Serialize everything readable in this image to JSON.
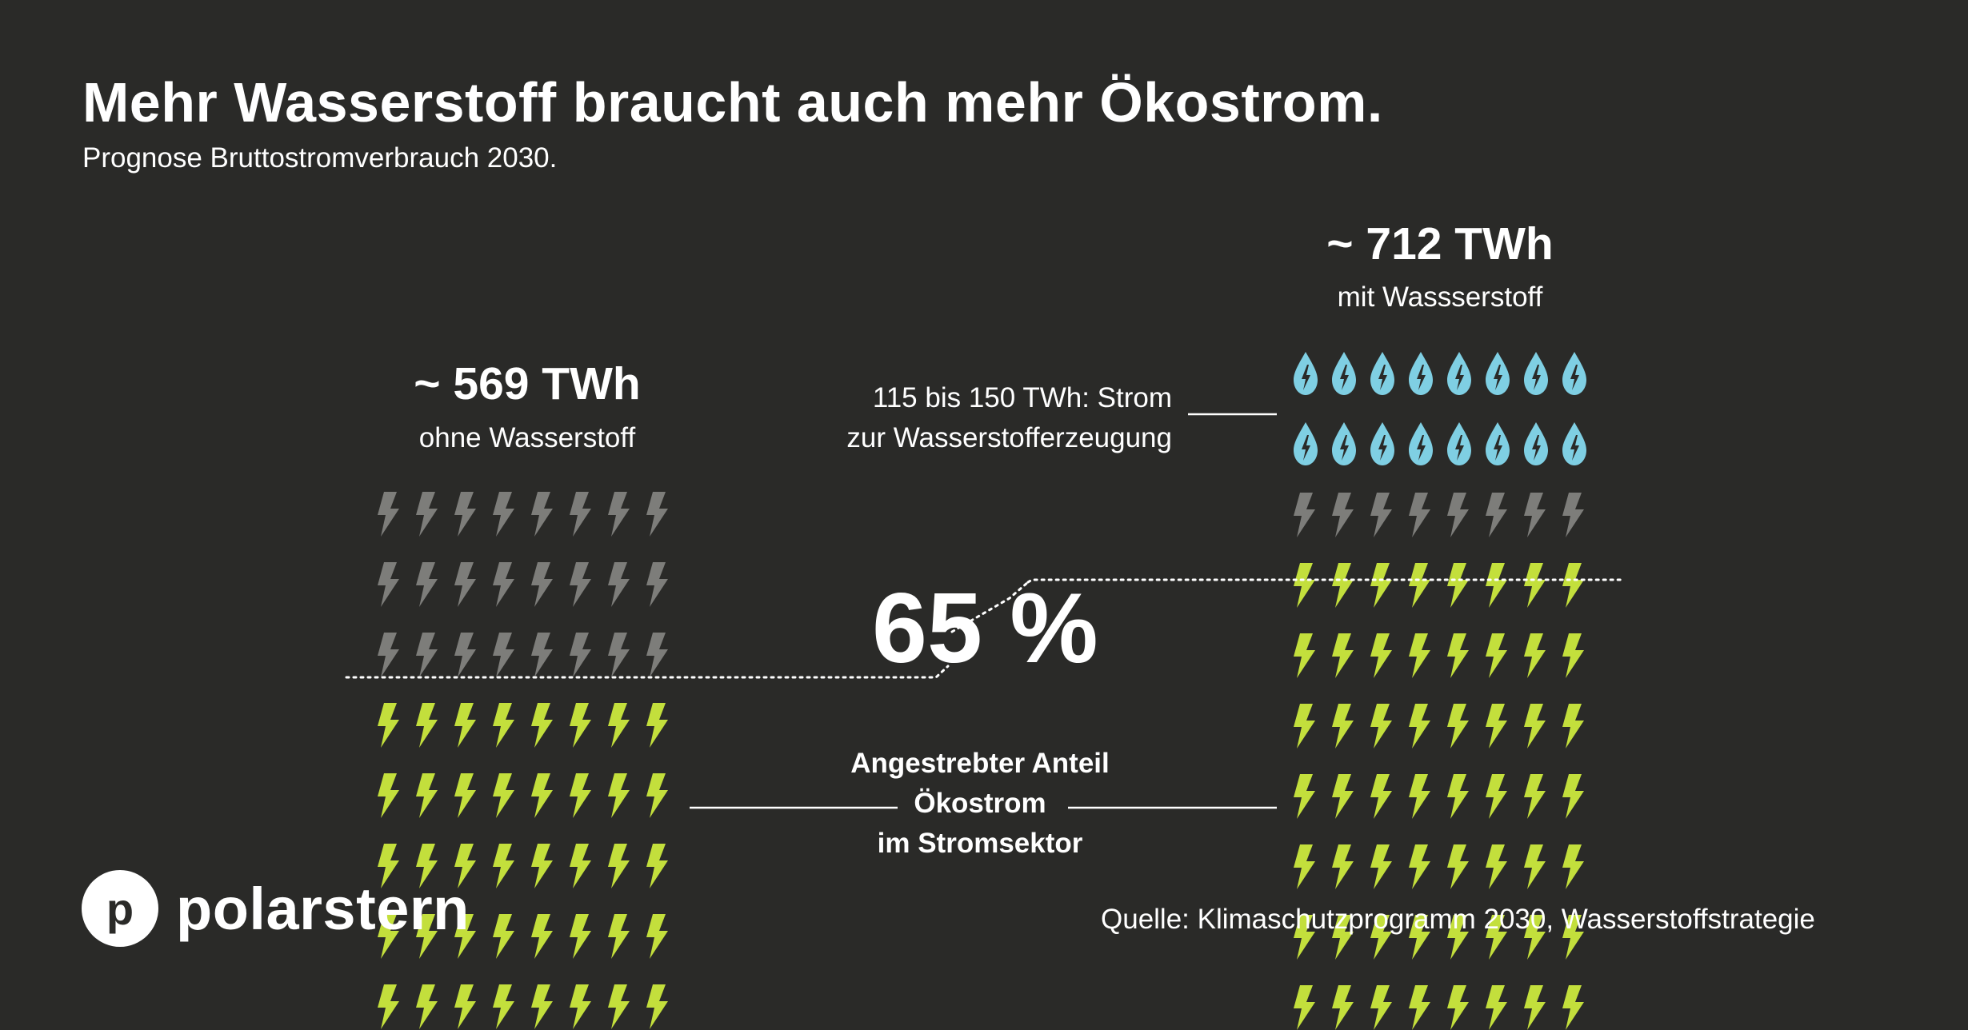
{
  "title": "Mehr Wasserstoff braucht auch mehr Ökostrom.",
  "subtitle": "Prognose Bruttostromverbrauch 2030.",
  "left": {
    "total": "~ 569 TWh",
    "label": "ohne Wasserstoff",
    "icon_rows": {
      "grey": 3,
      "green": 5
    },
    "icons_per_row": 8
  },
  "right": {
    "total": "~ 712 TWh",
    "label": "mit Wassserstoff",
    "icon_rows": {
      "drop": 2,
      "grey": 1,
      "green": 7
    },
    "icons_per_row": 8
  },
  "hydrogen_label": [
    "115 bis 150 TWh: Strom",
    "zur Wasserstofferzeugung"
  ],
  "target": {
    "percent": "65 %",
    "label": [
      "Angestrebter Anteil",
      "Ökostrom",
      "im Stromsektor"
    ]
  },
  "source": "Quelle: Klimaschutzprogramm 2030, Wasserstoffstrategie",
  "logo": {
    "initial": "p",
    "text": "polarstern"
  },
  "icons": {
    "green": "lightning-bolt-green",
    "grey": "lightning-bolt-grey",
    "drop": "water-drop-lightning"
  },
  "colors": {
    "background": "#2a2a28",
    "green_bolt": "#c3df3c",
    "grey_bolt": "#7d7d7a",
    "drop": "#7fcfe3",
    "text": "#ffffff"
  }
}
